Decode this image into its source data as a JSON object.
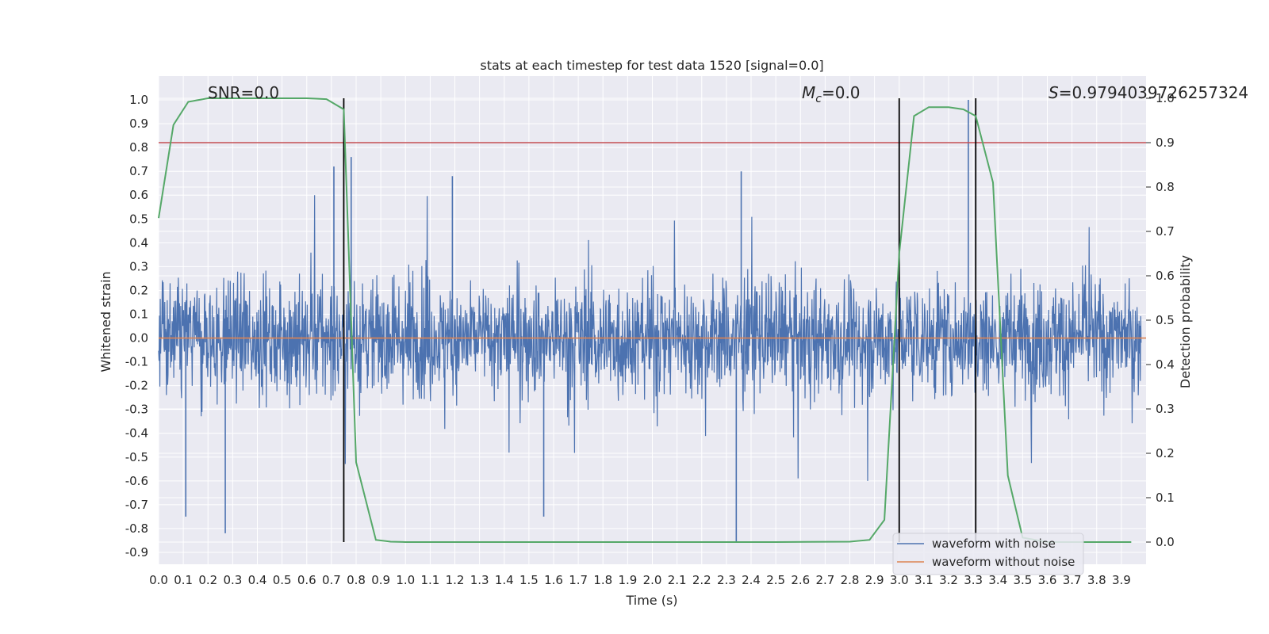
{
  "chart_data": {
    "type": "line",
    "title": "stats at each timestep for test data 1520 [signal=0.0]",
    "xlabel": "Time (s)",
    "ylabel": "Whitened strain",
    "ylabel_right": "Detection probability",
    "xlim": [
      0.0,
      4.0
    ],
    "ylim": [
      -0.95,
      1.1
    ],
    "ylim_right": [
      -0.05,
      1.05
    ],
    "x_ticks": [
      "0.0",
      "0.1",
      "0.2",
      "0.3",
      "0.4",
      "0.5",
      "0.6",
      "0.7",
      "0.8",
      "0.9",
      "1.0",
      "1.1",
      "1.2",
      "1.3",
      "1.4",
      "1.5",
      "1.6",
      "1.7",
      "1.8",
      "1.9",
      "2.0",
      "2.1",
      "2.2",
      "2.3",
      "2.4",
      "2.5",
      "2.6",
      "2.7",
      "2.8",
      "2.9",
      "3.0",
      "3.1",
      "3.2",
      "3.3",
      "3.4",
      "3.5",
      "3.6",
      "3.7",
      "3.8",
      "3.9"
    ],
    "y_ticks": [
      "-0.9",
      "-0.8",
      "-0.7",
      "-0.6",
      "-0.5",
      "-0.4",
      "-0.3",
      "-0.2",
      "-0.1",
      "0.0",
      "0.1",
      "0.2",
      "0.3",
      "0.4",
      "0.5",
      "0.6",
      "0.7",
      "0.8",
      "0.9",
      "1.0"
    ],
    "y_ticks_right": [
      "0.0",
      "0.1",
      "0.2",
      "0.3",
      "0.4",
      "0.5",
      "0.6",
      "0.7",
      "0.8",
      "0.9",
      "1.0"
    ],
    "grid": true,
    "legend_position": "bottom-right",
    "annotations": {
      "snr_label": "SNR=0.0",
      "mc_symbol": "M",
      "mc_subscript": "c",
      "mc_value": "=0.0",
      "s_symbol": "S",
      "s_value": "=0.9794039726257324"
    },
    "series": [
      {
        "name": "waveform with noise",
        "axis": "left",
        "color": "#4c72b0",
        "style": "dense noise trace, typical amplitude about ±0.3, peaks between -0.86 and 1.0",
        "peaks": [
          {
            "x": 0.11,
            "y": -0.75
          },
          {
            "x": 0.27,
            "y": -0.82
          },
          {
            "x": 0.71,
            "y": 0.72
          },
          {
            "x": 0.78,
            "y": 0.76
          },
          {
            "x": 1.19,
            "y": 0.68
          },
          {
            "x": 1.56,
            "y": -0.75
          },
          {
            "x": 2.34,
            "y": -0.86
          },
          {
            "x": 2.36,
            "y": 0.7
          },
          {
            "x": 3.28,
            "y": 1.0
          }
        ]
      },
      {
        "name": "waveform without noise",
        "axis": "left",
        "color": "#dd8452",
        "x": [
          0.0,
          4.0
        ],
        "y": [
          0.0,
          0.0
        ]
      },
      {
        "axis": "right",
        "color": "#55a868",
        "x": [
          0.0,
          0.06,
          0.12,
          0.2,
          0.3,
          0.4,
          0.5,
          0.6,
          0.68,
          0.75,
          0.8,
          0.88,
          0.94,
          1.0,
          1.5,
          2.0,
          2.5,
          2.8,
          2.88,
          2.94,
          3.0,
          3.06,
          3.12,
          3.2,
          3.26,
          3.31,
          3.38,
          3.44,
          3.5,
          3.6,
          3.7,
          3.8,
          3.9,
          3.94
        ],
        "y": [
          0.73,
          0.94,
          0.992,
          1.0,
          1.0,
          1.0,
          1.0,
          1.0,
          0.998,
          0.975,
          0.18,
          0.005,
          0.001,
          0.0,
          0.0,
          0.0,
          0.0,
          0.001,
          0.005,
          0.05,
          0.65,
          0.96,
          0.98,
          0.98,
          0.975,
          0.96,
          0.81,
          0.15,
          0.01,
          0.0,
          0.0,
          0.0,
          0.0,
          0.0
        ]
      }
    ],
    "threshold_line": {
      "axis": "right",
      "value": 0.9,
      "color": "#c44e52"
    },
    "vertical_lines": {
      "color": "#000000",
      "x": [
        0.75,
        3.0,
        3.31
      ],
      "y_range_right": [
        0.0,
        1.0
      ]
    },
    "legend": [
      "waveform with noise",
      "waveform without noise"
    ]
  }
}
